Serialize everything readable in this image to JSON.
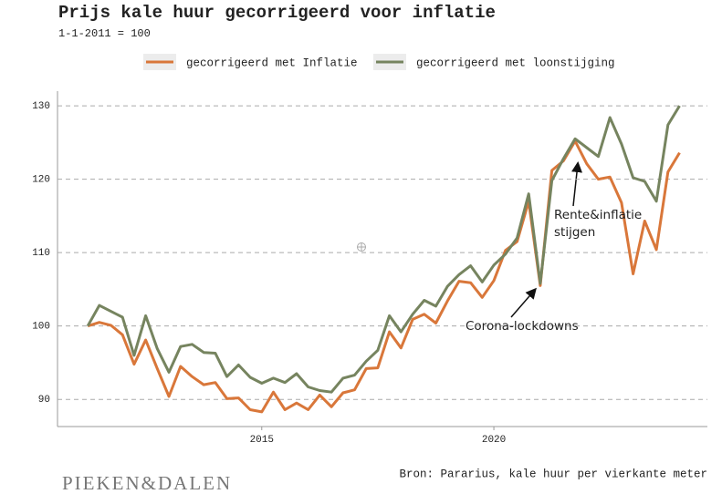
{
  "chart_data": {
    "type": "line",
    "title": "Prijs kale huur gecorrigeerd voor inflatie",
    "subtitle": "1-1-2011 = 100",
    "source": "Bron: Pararius, kale huur per vierkante meter",
    "logo": "PIEKEN&DALEN",
    "annotations": [
      {
        "lines": [
          "Rente&inflatie",
          "stijgen"
        ]
      },
      {
        "lines": [
          "Corona-lockdowns"
        ]
      }
    ],
    "x": [
      2011.25,
      2011.5,
      2011.75,
      2012,
      2012.25,
      2012.5,
      2012.75,
      2013,
      2013.25,
      2013.5,
      2013.75,
      2014,
      2014.25,
      2014.5,
      2014.75,
      2015,
      2015.25,
      2015.5,
      2015.75,
      2016,
      2016.25,
      2016.5,
      2016.75,
      2017,
      2017.25,
      2017.5,
      2017.75,
      2018,
      2018.25,
      2018.5,
      2018.75,
      2019,
      2019.25,
      2019.5,
      2019.75,
      2020,
      2020.25,
      2020.5,
      2020.75,
      2021,
      2021.25,
      2021.5,
      2021.75,
      2022,
      2022.25,
      2022.5,
      2022.75,
      2023,
      2023.25,
      2023.5,
      2023.75,
      2024
    ],
    "series": [
      {
        "name": "gecorrigeerd met Inflatie",
        "color": "#d9773a",
        "values": [
          100,
          100.5,
          100.1,
          98.8,
          94.8,
          98.1,
          94.2,
          90.4,
          94.5,
          93.1,
          92.0,
          92.3,
          90.1,
          90.2,
          88.6,
          88.3,
          91.0,
          88.6,
          89.5,
          88.6,
          90.6,
          89.0,
          90.9,
          91.3,
          94.2,
          94.3,
          99.2,
          97.0,
          100.9,
          101.6,
          100.4,
          103.4,
          106.1,
          105.9,
          103.9,
          106.2,
          110.3,
          111.5,
          117.0,
          105.5,
          121.2,
          122.5,
          125.2,
          122.1,
          120.0,
          120.3,
          116.8,
          107.1,
          114.3,
          110.4,
          121.0,
          123.6
        ]
      },
      {
        "name": "gecorrigeerd met loonstijging",
        "color": "#76845f",
        "values": [
          100,
          102.8,
          102.0,
          101.2,
          96.0,
          101.4,
          96.9,
          93.7,
          97.2,
          97.5,
          96.4,
          96.3,
          93.1,
          94.7,
          93.0,
          92.2,
          92.9,
          92.3,
          93.5,
          91.7,
          91.2,
          91.0,
          92.9,
          93.3,
          95.2,
          96.7,
          101.4,
          99.2,
          101.6,
          103.5,
          102.7,
          105.4,
          107.0,
          108.2,
          106.0,
          108.3,
          109.8,
          112.0,
          118.0,
          105.8,
          119.8,
          122.8,
          125.5,
          124.3,
          123.1,
          128.4,
          124.8,
          120.2,
          119.7,
          117.0,
          127.4,
          130.0
        ]
      }
    ],
    "xlim": [
      2010.6,
      2024.6
    ],
    "xticks": [
      2015,
      2020
    ],
    "ylim": [
      86.3,
      132
    ],
    "yticks": [
      90,
      100,
      110,
      120,
      130
    ],
    "grid": true
  }
}
